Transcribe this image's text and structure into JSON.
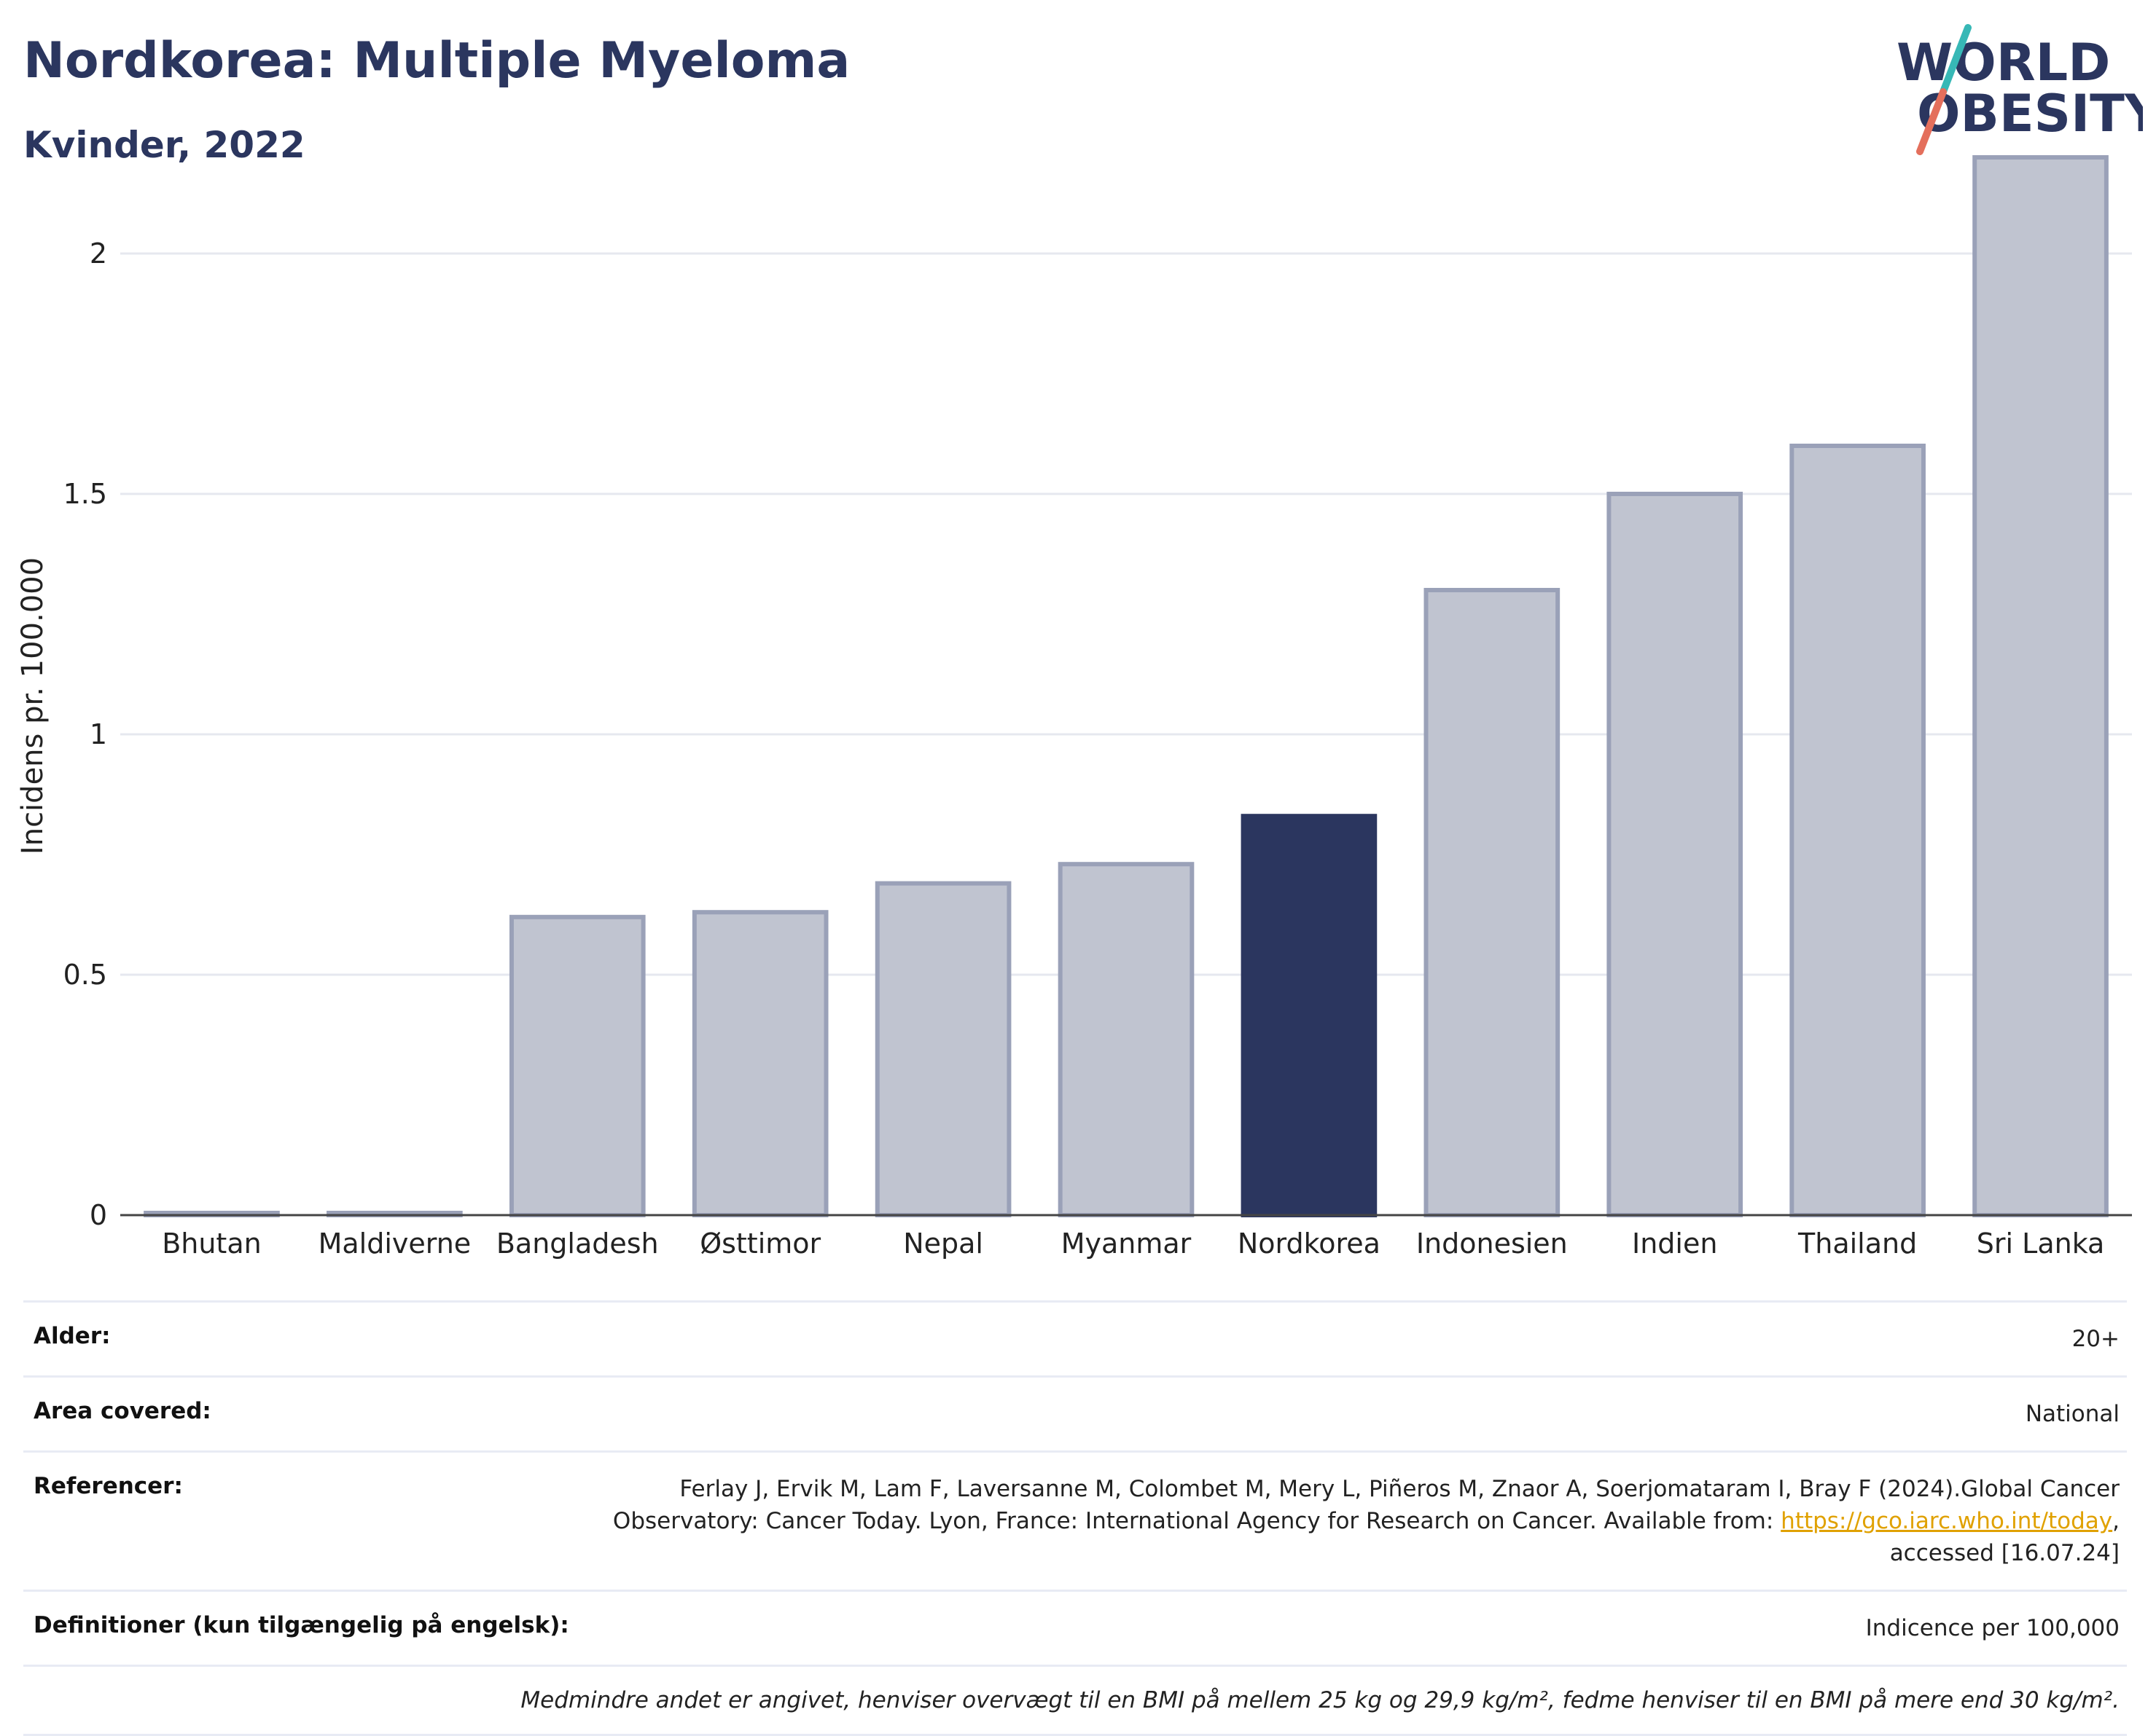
{
  "header": {
    "title": "Nordkorea: Multiple Myeloma",
    "subtitle": "Kvinder, 2022",
    "logo_line1": "WORLD",
    "logo_line2": "OBESITY"
  },
  "chart_data": {
    "type": "bar",
    "title": "Nordkorea: Multiple Myeloma",
    "subtitle": "Kvinder, 2022",
    "categories": [
      "Bhutan",
      "Maldiverne",
      "Bangladesh",
      "Østtimor",
      "Nepal",
      "Myanmar",
      "Nordkorea",
      "Indonesien",
      "Indien",
      "Thailand",
      "Sri Lanka"
    ],
    "values": [
      0,
      0,
      0.62,
      0.63,
      0.69,
      0.73,
      0.83,
      1.3,
      1.5,
      1.6,
      2.2
    ],
    "highlight": "Nordkorea",
    "xlabel": "",
    "ylabel": "Incidens pr. 100.000",
    "ylim": [
      0,
      2.3
    ],
    "yticks": [
      0,
      0.5,
      1,
      1.5,
      2
    ],
    "ytick_labels": [
      "0",
      "0.5",
      "1",
      "1.5",
      "2"
    ],
    "grid": true,
    "legend": "none",
    "colors": {
      "bar": "#c0c4d0",
      "bar_edge": "#9aa1b8",
      "highlight": "#2b365f",
      "grid": "#e6e8ef",
      "axis": "#444444"
    }
  },
  "meta": {
    "rows": [
      {
        "label": "Alder:",
        "value": "20+"
      },
      {
        "label": "Area covered:",
        "value": "National"
      },
      {
        "label": "Referencer:",
        "value_line1": "Ferlay J, Ervik M, Lam F, Laversanne M, Colombet M, Mery L, Piñeros M, Znaor A, Soerjomataram I, Bray F (2024).Global Cancer",
        "value_line2": "Observatory: Cancer Today. Lyon, France: International Agency for Research on Cancer. Available from: ",
        "link": "https://gco.iarc.who.int/today",
        "value_after_link": ",",
        "value_line3": "accessed [16.07.24]"
      },
      {
        "label": "Definitioner (kun tilgængelig på engelsk):",
        "value": "Indicence per 100,000"
      }
    ],
    "note": "Medmindre andet er angivet, henviser overvægt til en BMI på mellem 25 kg og 29,9 kg/m², fedme henviser til en BMI på mere end 30 kg/m²."
  }
}
